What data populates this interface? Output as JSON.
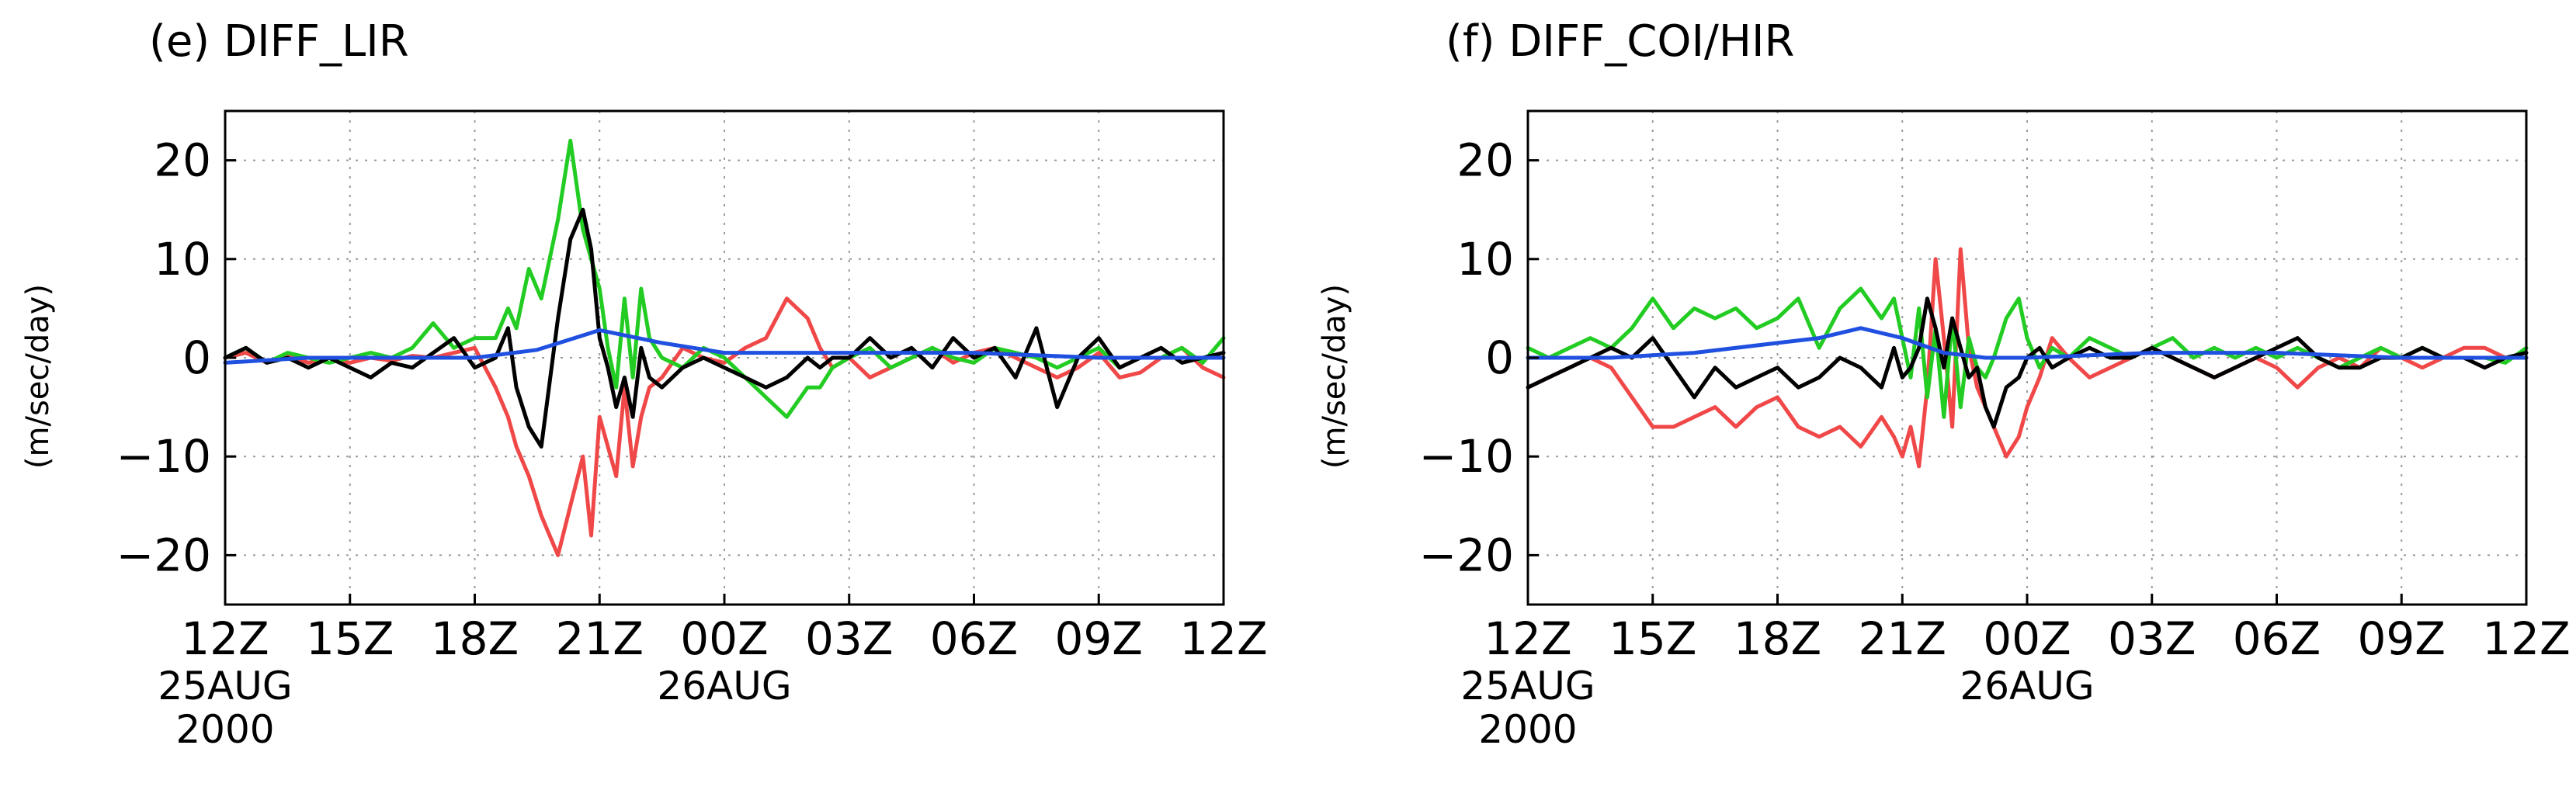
{
  "chart_data": [
    {
      "type": "line",
      "title": "(e) DIFF_LIR",
      "ylabel": "(m/sec/day)",
      "xlabel": "",
      "ylim": [
        -25,
        25
      ],
      "y_ticks": [
        20,
        10,
        0,
        -10,
        -20
      ],
      "y_tick_labels": [
        "20",
        "10",
        "0",
        "−10",
        "−20"
      ],
      "x_hours_range": [
        0,
        24
      ],
      "x_ticks": [
        0,
        3,
        6,
        9,
        12,
        15,
        18,
        21,
        24
      ],
      "x_tick_labels": [
        "12Z",
        "15Z",
        "18Z",
        "21Z",
        "00Z",
        "03Z",
        "06Z",
        "09Z",
        "12Z"
      ],
      "date_labels": [
        {
          "at": 0,
          "lines": [
            "25AUG",
            "2000"
          ]
        },
        {
          "at": 12,
          "lines": [
            "26AUG"
          ]
        }
      ],
      "grid": true,
      "series": [
        {
          "name": "red",
          "color": "#f04848",
          "x": [
            0,
            0.5,
            1,
            1.5,
            2,
            2.5,
            3,
            3.5,
            4,
            4.5,
            5,
            5.5,
            6,
            6.5,
            6.8,
            7,
            7.3,
            7.6,
            8,
            8.3,
            8.6,
            8.8,
            9,
            9.2,
            9.4,
            9.6,
            9.8,
            10,
            10.2,
            10.5,
            11,
            11.5,
            12,
            12.5,
            13,
            13.5,
            14,
            14.3,
            14.6,
            15,
            15.5,
            16,
            16.5,
            17,
            17.5,
            18,
            18.5,
            19,
            19.5,
            20,
            20.5,
            21,
            21.5,
            22,
            22.5,
            23,
            23.5,
            24
          ],
          "values": [
            0,
            0.5,
            -0.5,
            0.2,
            -0.5,
            0,
            -0.5,
            0,
            -0.3,
            0.2,
            0,
            0.5,
            1,
            -3,
            -6,
            -9,
            -12,
            -16,
            -20,
            -15,
            -10,
            -18,
            -6,
            -9,
            -12,
            -3,
            -11,
            -6,
            -3,
            -2,
            1,
            0,
            -0.5,
            1,
            2,
            6,
            4,
            1,
            -1,
            0,
            -2,
            -1,
            0,
            1,
            -0.5,
            0.5,
            1,
            0,
            -1,
            -2,
            -1,
            0.5,
            -2,
            -1.5,
            0,
            1,
            -1,
            -2
          ]
        },
        {
          "name": "green",
          "color": "#22cc22",
          "x": [
            0,
            0.5,
            1,
            1.5,
            2,
            2.5,
            3,
            3.5,
            4,
            4.5,
            5,
            5.5,
            6,
            6.5,
            6.8,
            7,
            7.3,
            7.6,
            8,
            8.3,
            8.6,
            8.8,
            9,
            9.2,
            9.4,
            9.6,
            9.8,
            10,
            10.2,
            10.5,
            11,
            11.5,
            12,
            12.5,
            13,
            13.5,
            14,
            14.3,
            14.6,
            15,
            15.5,
            16,
            16.5,
            17,
            17.5,
            18,
            18.5,
            19,
            19.5,
            20,
            20.5,
            21,
            21.5,
            22,
            22.5,
            23,
            23.5,
            24
          ],
          "values": [
            0,
            1,
            -0.5,
            0.5,
            0,
            -0.5,
            0,
            0.5,
            0,
            1,
            3.5,
            1,
            2,
            2,
            5,
            3,
            9,
            6,
            14,
            22,
            13,
            10,
            7,
            1,
            -3,
            6,
            -2,
            7,
            2,
            0,
            -1,
            1,
            0,
            -2,
            -4,
            -6,
            -3,
            -3,
            -1,
            0,
            1,
            -1,
            0,
            1,
            0,
            -0.5,
            1,
            0.5,
            0,
            -1,
            0,
            1,
            -1,
            0,
            0,
            1,
            -0.5,
            2
          ]
        },
        {
          "name": "black",
          "color": "#000000",
          "x": [
            0,
            0.5,
            1,
            1.5,
            2,
            2.5,
            3,
            3.5,
            4,
            4.5,
            5,
            5.5,
            6,
            6.5,
            6.8,
            7,
            7.3,
            7.6,
            8,
            8.3,
            8.6,
            8.8,
            9,
            9.2,
            9.4,
            9.6,
            9.8,
            10,
            10.2,
            10.5,
            11,
            11.5,
            12,
            12.5,
            13,
            13.5,
            14,
            14.3,
            14.6,
            15,
            15.5,
            16,
            16.5,
            17,
            17.5,
            18,
            18.5,
            19,
            19.5,
            20,
            20.5,
            21,
            21.5,
            22,
            22.5,
            23,
            23.5,
            24
          ],
          "values": [
            0,
            1,
            -0.5,
            0,
            -1,
            0,
            -1,
            -2,
            -0.5,
            -1,
            0.5,
            2,
            -1,
            0,
            3,
            -3,
            -7,
            -9,
            4,
            12,
            15,
            11,
            2,
            -1,
            -5,
            -2,
            -6,
            1,
            -2,
            -3,
            -1,
            0,
            -1,
            -2,
            -3,
            -2,
            0,
            -1,
            0,
            0,
            2,
            0,
            1,
            -1,
            2,
            0,
            1,
            -2,
            3,
            -5,
            0,
            2,
            -1,
            0,
            1,
            -0.5,
            0,
            0.5
          ]
        },
        {
          "name": "blue",
          "color": "#2050e0",
          "x": [
            0,
            2,
            4,
            6,
            7.5,
            9,
            10.5,
            12,
            15,
            18,
            21,
            24
          ],
          "values": [
            -0.5,
            0,
            0,
            0,
            0.8,
            2.8,
            1.5,
            0.5,
            0.5,
            0.5,
            0,
            0
          ]
        }
      ]
    },
    {
      "type": "line",
      "title": "(f) DIFF_COI/HIR",
      "ylabel": "(m/sec/day)",
      "xlabel": "",
      "ylim": [
        -25,
        25
      ],
      "y_ticks": [
        20,
        10,
        0,
        -10,
        -20
      ],
      "y_tick_labels": [
        "20",
        "10",
        "0",
        "−10",
        "−20"
      ],
      "x_hours_range": [
        0,
        24
      ],
      "x_ticks": [
        0,
        3,
        6,
        9,
        12,
        15,
        18,
        21,
        24
      ],
      "x_tick_labels": [
        "12Z",
        "15Z",
        "18Z",
        "21Z",
        "00Z",
        "03Z",
        "06Z",
        "09Z",
        "12Z"
      ],
      "date_labels": [
        {
          "at": 0,
          "lines": [
            "25AUG",
            "2000"
          ]
        },
        {
          "at": 12,
          "lines": [
            "26AUG"
          ]
        }
      ],
      "grid": true,
      "series": [
        {
          "name": "red",
          "color": "#f04848",
          "x": [
            0,
            0.5,
            1,
            1.5,
            2,
            2.5,
            3,
            3.5,
            4,
            4.5,
            5,
            5.5,
            6,
            6.5,
            7,
            7.5,
            8,
            8.5,
            8.8,
            9,
            9.2,
            9.4,
            9.6,
            9.8,
            10,
            10.2,
            10.4,
            10.6,
            10.8,
            11,
            11.2,
            11.5,
            11.8,
            12,
            12.3,
            12.6,
            13,
            13.5,
            14,
            14.5,
            15,
            15.5,
            16,
            16.5,
            17,
            17.5,
            18,
            18.5,
            19,
            19.5,
            20,
            20.5,
            21,
            21.5,
            22,
            22.5,
            23,
            23.5,
            24
          ],
          "values": [
            -3,
            -2,
            -1,
            0,
            -1,
            -4,
            -7,
            -7,
            -6,
            -5,
            -7,
            -5,
            -4,
            -7,
            -8,
            -7,
            -9,
            -6,
            -8,
            -10,
            -7,
            -11,
            -3,
            10,
            2,
            -7,
            11,
            1,
            -3,
            -5,
            -7,
            -10,
            -8,
            -5,
            -2,
            2,
            0,
            -2,
            -1,
            0,
            1,
            0,
            -1,
            -2,
            -1,
            0,
            -1,
            -3,
            -1,
            0,
            -1,
            1,
            0,
            -1,
            0,
            1,
            1,
            0,
            0
          ]
        },
        {
          "name": "green",
          "color": "#22cc22",
          "x": [
            0,
            0.5,
            1,
            1.5,
            2,
            2.5,
            3,
            3.5,
            4,
            4.5,
            5,
            5.5,
            6,
            6.5,
            7,
            7.5,
            8,
            8.5,
            8.8,
            9,
            9.2,
            9.4,
            9.6,
            9.8,
            10,
            10.2,
            10.4,
            10.6,
            10.8,
            11,
            11.2,
            11.5,
            11.8,
            12,
            12.3,
            12.6,
            13,
            13.5,
            14,
            14.5,
            15,
            15.5,
            16,
            16.5,
            17,
            17.5,
            18,
            18.5,
            19,
            19.5,
            20,
            20.5,
            21,
            21.5,
            22,
            22.5,
            23,
            23.5,
            24
          ],
          "values": [
            1,
            0,
            1,
            2,
            1,
            3,
            6,
            3,
            5,
            4,
            5,
            3,
            4,
            6,
            1,
            5,
            7,
            4,
            6,
            2,
            -2,
            5,
            -4,
            3,
            -6,
            4,
            -5,
            2,
            -1,
            -2,
            0,
            4,
            6,
            2,
            -1,
            1,
            0,
            2,
            1,
            0,
            1,
            2,
            0,
            1,
            0,
            1,
            0,
            1,
            0,
            -1,
            0,
            1,
            0,
            1,
            0,
            0,
            0,
            -0.5,
            1
          ]
        },
        {
          "name": "black",
          "color": "#000000",
          "x": [
            0,
            0.5,
            1,
            1.5,
            2,
            2.5,
            3,
            3.5,
            4,
            4.5,
            5,
            5.5,
            6,
            6.5,
            7,
            7.5,
            8,
            8.5,
            8.8,
            9,
            9.2,
            9.4,
            9.6,
            9.8,
            10,
            10.2,
            10.4,
            10.6,
            10.8,
            11,
            11.2,
            11.5,
            11.8,
            12,
            12.3,
            12.6,
            13,
            13.5,
            14,
            14.5,
            15,
            15.5,
            16,
            16.5,
            17,
            17.5,
            18,
            18.5,
            19,
            19.5,
            20,
            20.5,
            21,
            21.5,
            22,
            22.5,
            23,
            23.5,
            24
          ],
          "values": [
            -3,
            -2,
            -1,
            0,
            1,
            0,
            2,
            -1,
            -4,
            -1,
            -3,
            -2,
            -1,
            -3,
            -2,
            0,
            -1,
            -3,
            1,
            -2,
            -1,
            1,
            6,
            3,
            -1,
            4,
            1,
            -2,
            -1,
            -5,
            -7,
            -3,
            -2,
            0,
            1,
            -1,
            0,
            1,
            0,
            0,
            1,
            0,
            -1,
            -2,
            -1,
            0,
            1,
            2,
            0,
            -1,
            -1,
            0,
            0,
            1,
            0,
            0,
            -1,
            0,
            0.5
          ]
        },
        {
          "name": "blue",
          "color": "#2050e0",
          "x": [
            0,
            2,
            4,
            6,
            7,
            8,
            9,
            10,
            11,
            12,
            15,
            18,
            21,
            24
          ],
          "values": [
            0,
            0,
            0.5,
            1.5,
            2,
            3,
            2,
            0.5,
            0,
            0,
            0.5,
            0.5,
            0,
            0
          ]
        }
      ]
    }
  ]
}
